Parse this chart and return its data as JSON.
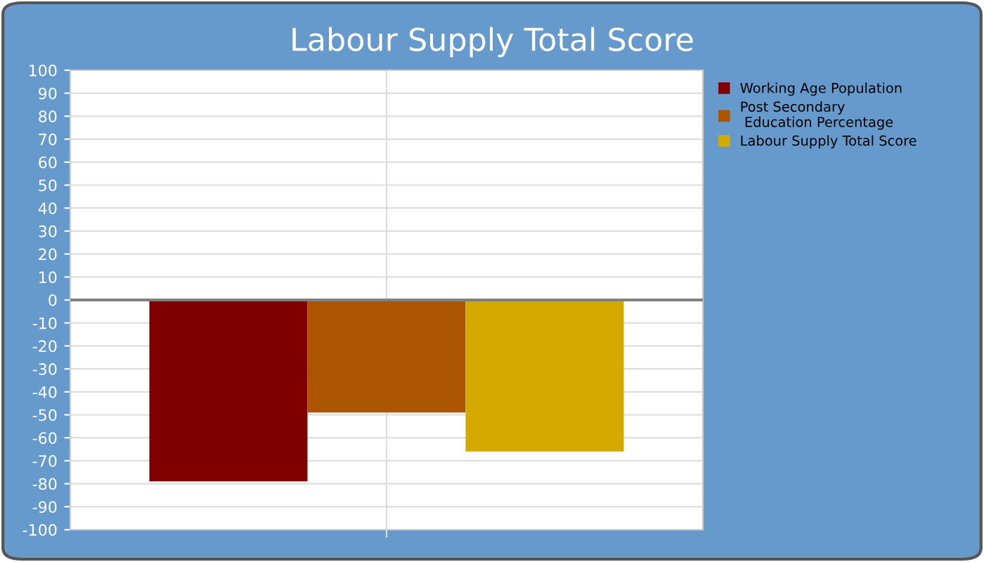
{
  "chart_data": {
    "type": "bar",
    "title": "Labour Supply Total Score",
    "categories": [
      null
    ],
    "series": [
      {
        "name": "Working Age Population",
        "color": "#800000",
        "values": [
          -79
        ]
      },
      {
        "name": "Post Secondary\n Education Percentage",
        "color": "#ab5500",
        "values": [
          -49
        ]
      },
      {
        "name": "Labour Supply Total Score",
        "color": "#d4aa00",
        "values": [
          -66
        ]
      }
    ],
    "ylim": [
      -100,
      100
    ],
    "yticks": [
      -100,
      -90,
      -80,
      -70,
      -60,
      -50,
      -40,
      -30,
      -20,
      -10,
      0,
      10,
      20,
      30,
      40,
      50,
      60,
      70,
      80,
      90,
      100
    ],
    "ref_lines": [
      {
        "axis": "y",
        "value": 0,
        "color": "#808080"
      }
    ],
    "grid": true,
    "legend": "top right"
  }
}
